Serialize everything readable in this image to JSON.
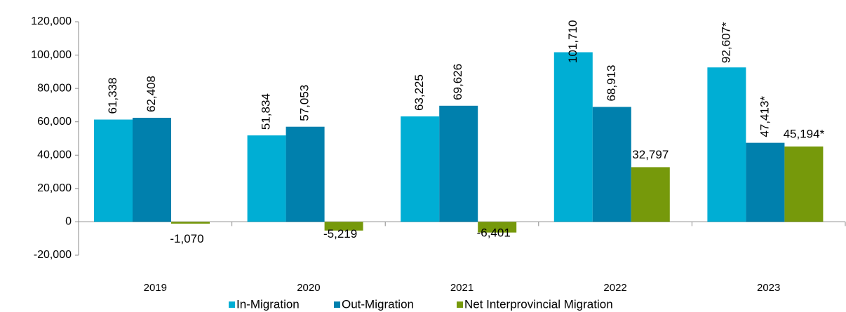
{
  "chart_data": {
    "type": "bar",
    "categories": [
      "2019",
      "2020",
      "2021",
      "2022",
      "2023"
    ],
    "series": [
      {
        "name": "In-Migration",
        "color": "#00aed4",
        "values": [
          61338,
          51834,
          63225,
          101710,
          92607
        ],
        "value_labels": [
          "61,338",
          "51,834",
          "63,225",
          "101,710",
          "92,607*"
        ]
      },
      {
        "name": "Out-Migration",
        "color": "#0080ad",
        "values": [
          62408,
          57053,
          69626,
          68913,
          47413
        ],
        "value_labels": [
          "62,408",
          "57,053",
          "69,626",
          "68,913",
          "47,413*"
        ]
      },
      {
        "name": "Net Interprovincial Migration",
        "color": "#76990b",
        "values": [
          -1070,
          -5219,
          -6401,
          32797,
          45194
        ],
        "value_labels": [
          "-1,070",
          "-5,219",
          "-6,401",
          "32,797",
          "45,194*"
        ]
      }
    ],
    "ylim": [
      -20000,
      120000
    ],
    "yticks": [
      {
        "value": -20000,
        "label": "-20,000"
      },
      0,
      {
        "value": 20000,
        "label": "20,000"
      },
      {
        "value": 40000,
        "label": "40,000"
      },
      {
        "value": 60000,
        "label": "60,000"
      },
      {
        "value": 80000,
        "label": "80,000"
      },
      {
        "value": 100000,
        "label": "100,000"
      },
      {
        "value": 120000,
        "label": "120,000"
      }
    ],
    "legend": "bottom"
  }
}
